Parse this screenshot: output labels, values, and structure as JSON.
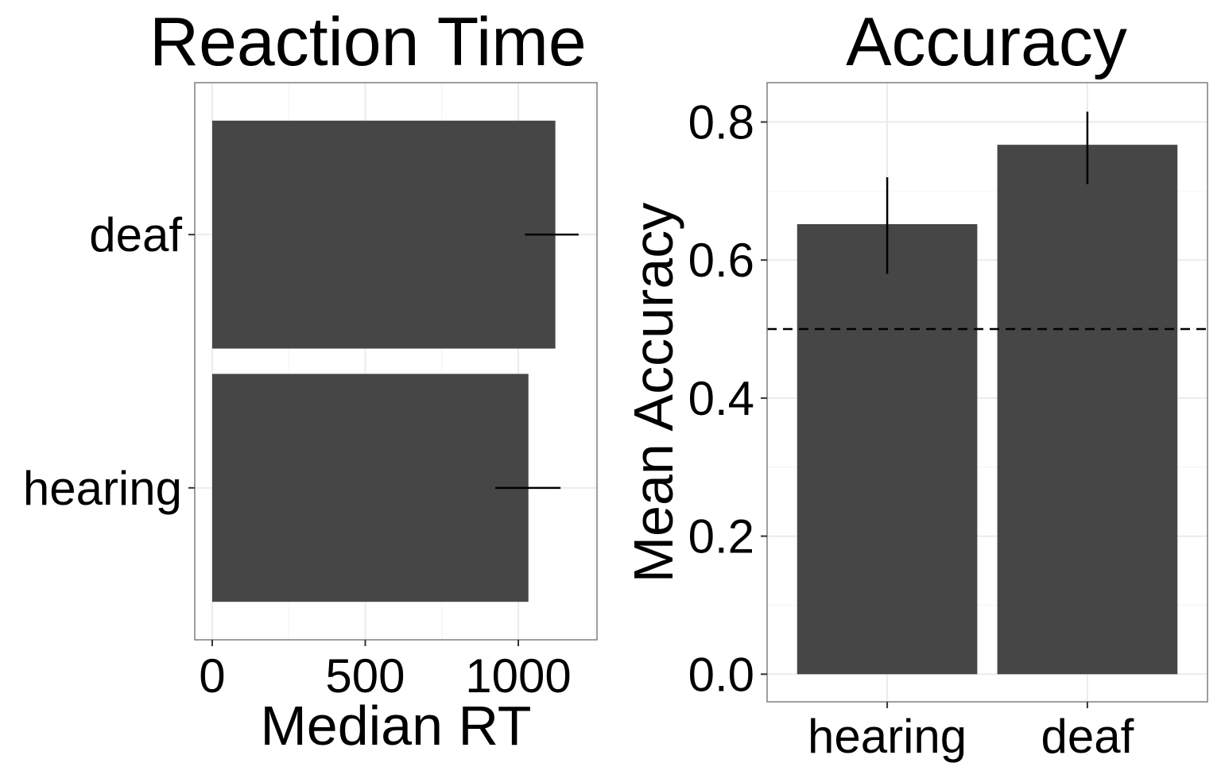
{
  "chart_data": [
    {
      "type": "bar",
      "orientation": "horizontal",
      "title": "Reaction Time",
      "xlabel": "Median RT",
      "ylabel": "",
      "categories": [
        "hearing",
        "deaf"
      ],
      "values": [
        1033,
        1121
      ],
      "error_low": [
        925,
        1022
      ],
      "error_high": [
        1138,
        1197
      ],
      "xlim": [
        -57,
        1257
      ],
      "xticks": [
        0,
        500,
        1000
      ],
      "xtick_labels": [
        "0",
        "500",
        "1000"
      ],
      "grid": true,
      "colors": {
        "bar": "#464646",
        "error": "#000000"
      }
    },
    {
      "type": "bar",
      "orientation": "vertical",
      "title": "Accuracy",
      "xlabel": "",
      "ylabel": "Mean Accuracy",
      "categories": [
        "hearing",
        "deaf"
      ],
      "values": [
        0.652,
        0.767
      ],
      "error_low": [
        0.58,
        0.71
      ],
      "error_high": [
        0.72,
        0.815
      ],
      "ylim": [
        -0.04,
        0.857
      ],
      "yticks": [
        0.0,
        0.2,
        0.4,
        0.6,
        0.8
      ],
      "ytick_labels": [
        "0.0",
        "0.2",
        "0.4",
        "0.6",
        "0.8"
      ],
      "reference_line": 0.5,
      "grid": true,
      "colors": {
        "bar": "#464646",
        "error": "#000000",
        "reference": "#000000"
      }
    }
  ]
}
